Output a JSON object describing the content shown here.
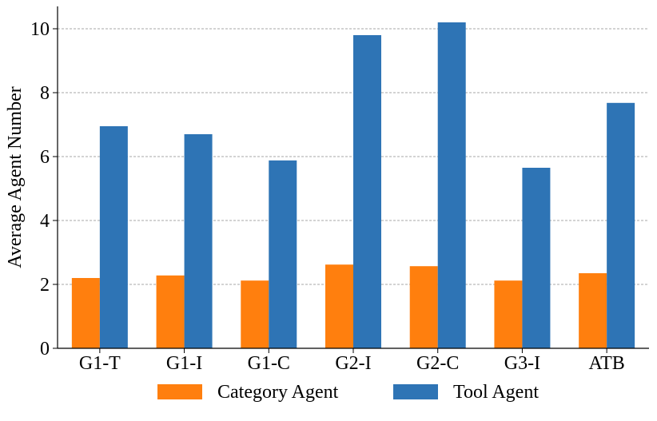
{
  "chart_data": {
    "type": "bar",
    "title": "",
    "xlabel": "",
    "ylabel": "Average Agent Number",
    "ylim": [
      0,
      10.7
    ],
    "yticks": [
      0,
      2,
      4,
      6,
      8,
      10
    ],
    "grid": "horizontal dashed",
    "legend_position": "bottom",
    "categories": [
      "G1-T",
      "G1-I",
      "G1-C",
      "G2-I",
      "G2-C",
      "G3-I",
      "ATB"
    ],
    "series": [
      {
        "name": "Category Agent",
        "color": "#ff7f0e",
        "values": [
          2.2,
          2.28,
          2.12,
          2.62,
          2.57,
          2.12,
          2.35
        ]
      },
      {
        "name": "Tool Agent",
        "color": "#2e74b5",
        "values": [
          6.95,
          6.7,
          5.88,
          9.8,
          10.2,
          5.65,
          7.68
        ]
      }
    ]
  }
}
